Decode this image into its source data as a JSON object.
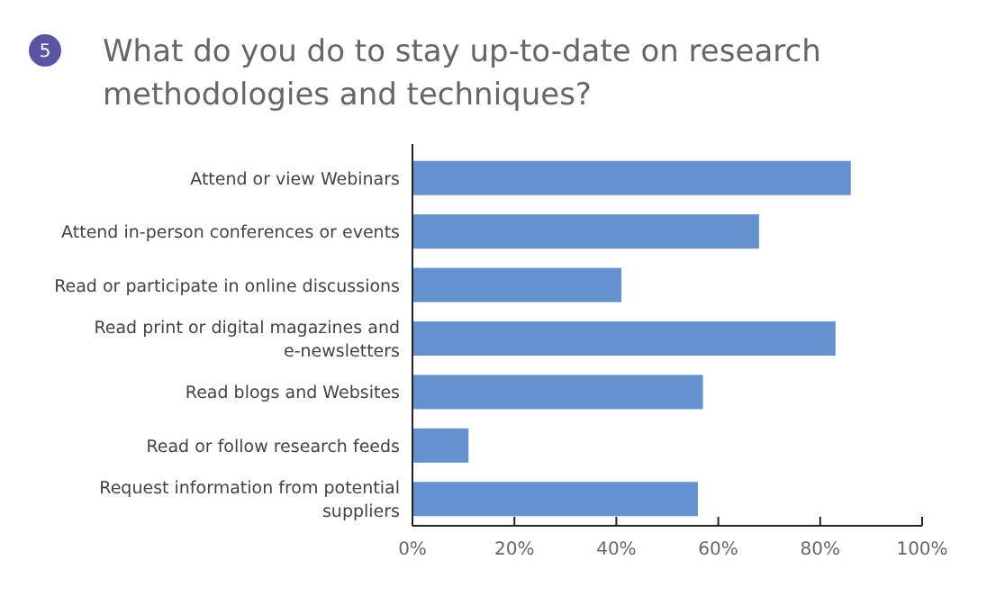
{
  "chart_data": {
    "type": "bar",
    "orientation": "horizontal",
    "title": "What do you do to stay up-to-date on research\nmethodologies and techniques?",
    "annotations": [
      "5"
    ],
    "categories": [
      "Attend or view Webinars",
      "Attend in-person conferences or events",
      "Read or participate in online discussions",
      "Read print or digital magazines and\ne-newsletters",
      "Read blogs and Websites",
      "Read or follow research feeds",
      "Request information from potential\nsuppliers"
    ],
    "values": [
      86,
      68,
      41,
      83,
      57,
      11,
      56
    ],
    "color": "#6591cd",
    "xlim": [
      0,
      100
    ],
    "xticks": [
      {
        "value": 0,
        "label": "0%"
      },
      {
        "value": 20,
        "label": "20%"
      },
      {
        "value": 40,
        "label": "40%"
      },
      {
        "value": 60,
        "label": "60%"
      },
      {
        "value": 80,
        "label": "80%"
      },
      {
        "value": 100,
        "label": "100%"
      }
    ],
    "grid": false
  }
}
